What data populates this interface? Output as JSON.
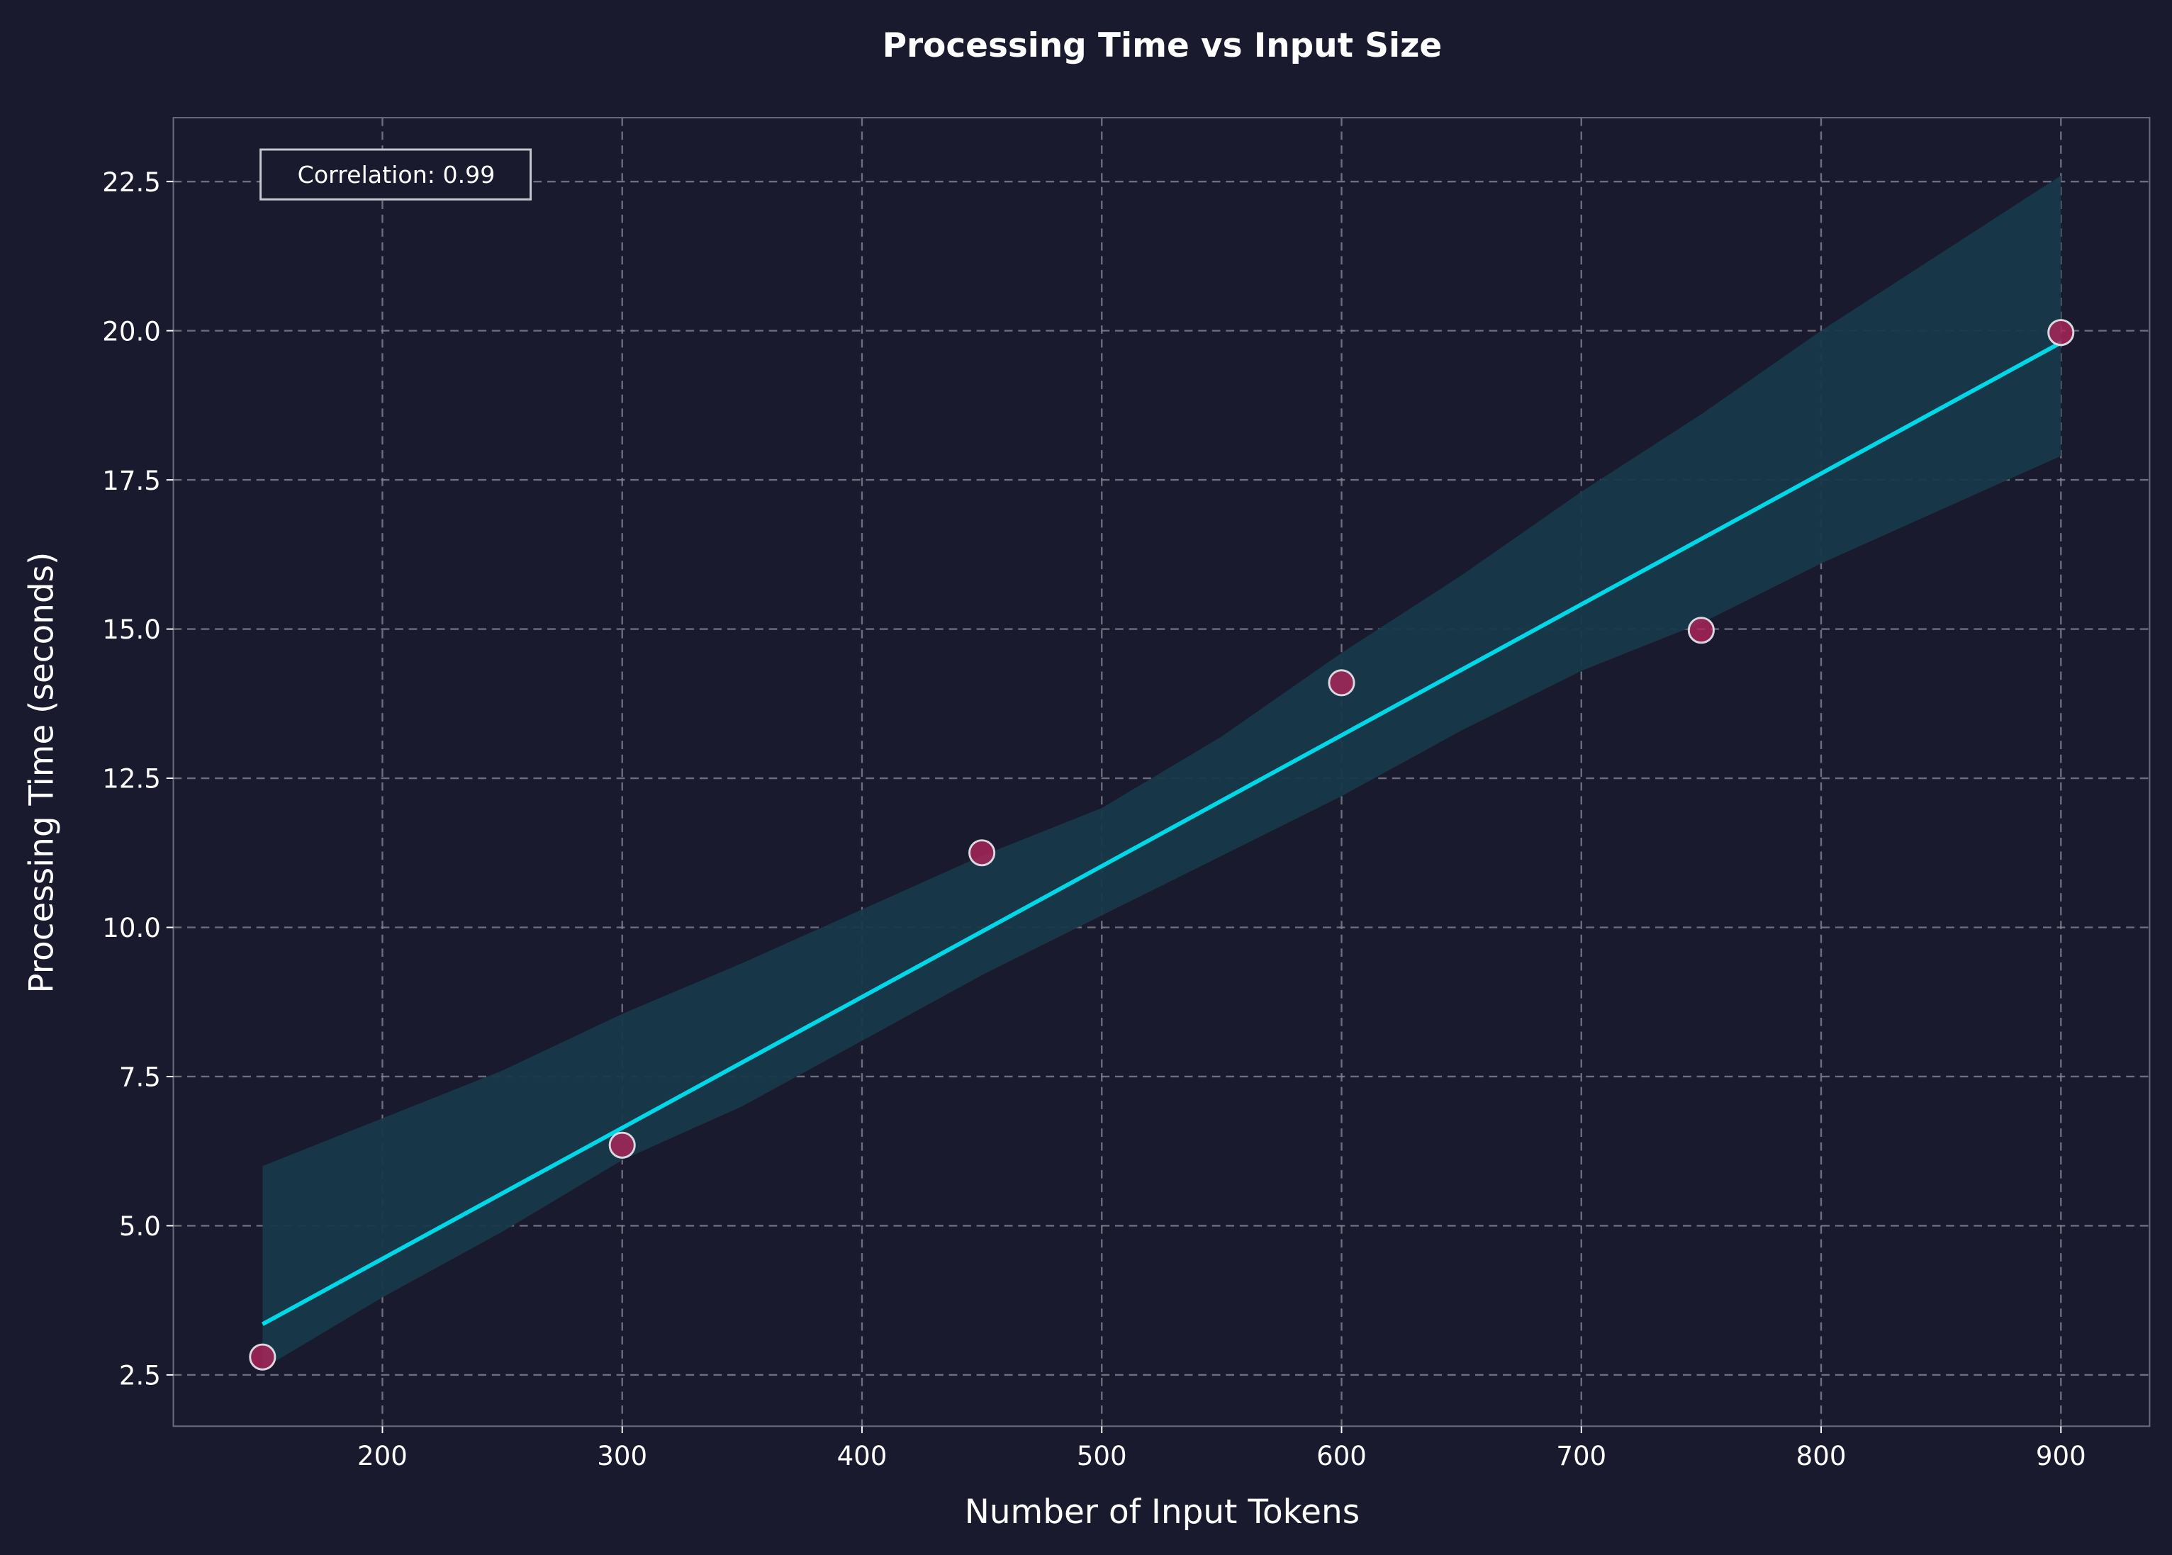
{
  "chart_data": {
    "type": "scatter",
    "title": "Processing Time vs Input Size",
    "xlabel": "Number of Input Tokens",
    "ylabel": "Processing Time (seconds)",
    "xlim": [
      112.8,
      937
    ],
    "ylim": [
      1.64,
      23.57
    ],
    "xticks": [
      200,
      300,
      400,
      500,
      600,
      700,
      800,
      900
    ],
    "yticks": [
      2.5,
      5.0,
      7.5,
      10.0,
      12.5,
      15.0,
      17.5,
      20.0,
      22.5
    ],
    "grid": true,
    "annotation": "Correlation: 0.99",
    "points": {
      "x": [
        150,
        300,
        450,
        600,
        750,
        900
      ],
      "y": [
        2.8,
        6.35,
        11.25,
        14.1,
        14.98,
        19.97
      ]
    },
    "fit_line": {
      "x": [
        150,
        900
      ],
      "y": [
        3.35,
        19.8
      ]
    },
    "confidence_band": {
      "x": [
        150,
        200,
        250,
        300,
        350,
        400,
        450,
        500,
        525,
        550,
        600,
        650,
        700,
        750,
        800,
        850,
        900
      ],
      "upper": [
        6.0,
        6.8,
        7.6,
        8.55,
        9.4,
        10.3,
        11.2,
        12.0,
        12.6,
        13.2,
        14.6,
        15.9,
        17.3,
        18.6,
        20.0,
        21.3,
        22.6
      ],
      "lower": [
        2.6,
        3.8,
        4.9,
        6.1,
        7.0,
        8.1,
        9.2,
        10.2,
        10.7,
        11.2,
        12.2,
        13.3,
        14.3,
        15.1,
        16.1,
        17.0,
        17.9
      ]
    },
    "colors": {
      "background": "#1a1a2e",
      "points": "#b0245a",
      "point_edge": "#d8d8e0",
      "line": "#00d8e8",
      "band": "#17394a"
    }
  }
}
